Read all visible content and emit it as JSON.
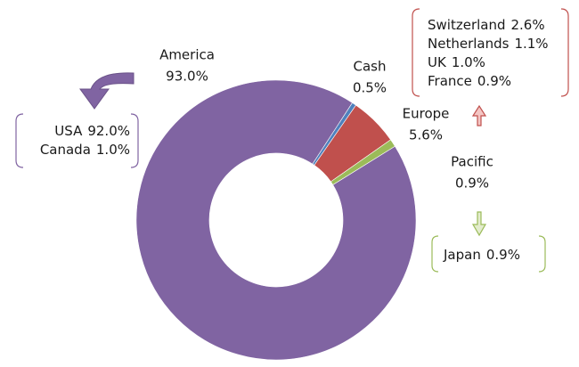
{
  "chart_data": {
    "type": "donut",
    "categories": [
      "Cash",
      "Europe",
      "Pacific",
      "America"
    ],
    "values": [
      0.5,
      5.6,
      0.9,
      93.0
    ],
    "value_labels": [
      "0.5%",
      "5.6%",
      "0.9%",
      "93.0%"
    ],
    "colors": [
      "#4f81bd",
      "#c0504d",
      "#9bbb59",
      "#8064a2"
    ],
    "details": {
      "America": [
        {
          "name": "USA",
          "value": 92.0,
          "value_label": "92.0%"
        },
        {
          "name": "Canada",
          "value": 1.0,
          "value_label": "1.0%"
        }
      ],
      "Europe": [
        {
          "name": "Switzerland",
          "value": 2.6,
          "value_label": "2.6%"
        },
        {
          "name": "Netherlands",
          "value": 1.1,
          "value_label": "1.1%"
        },
        {
          "name": "UK",
          "value": 1.0,
          "value_label": "1.0%"
        },
        {
          "name": "France",
          "value": 0.9,
          "value_label": "0.9%"
        }
      ],
      "Pacific": [
        {
          "name": "Japan",
          "value": 0.9,
          "value_label": "0.9%"
        }
      ]
    }
  }
}
